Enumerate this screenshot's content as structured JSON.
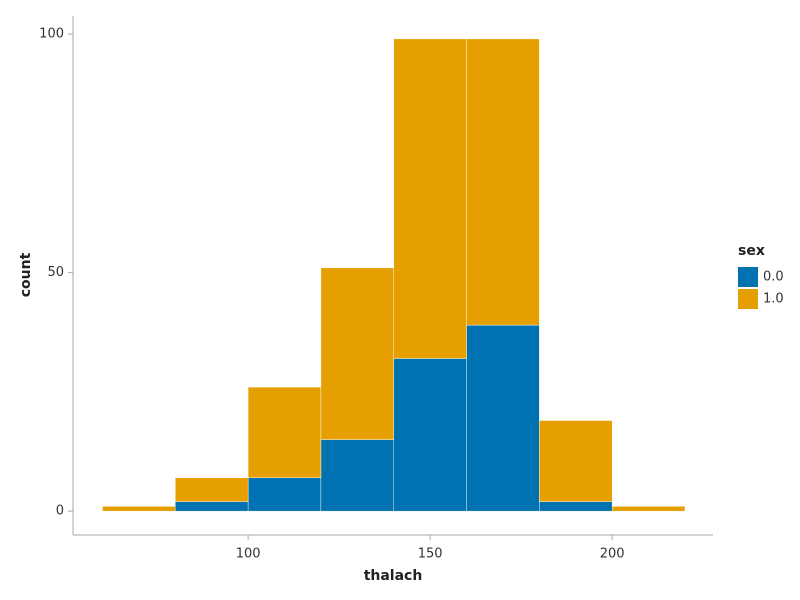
{
  "chart_data": {
    "type": "histogram",
    "stacked": true,
    "x_label": "thalach",
    "y_label": "count",
    "legend_title": "sex",
    "legend_position": "right",
    "bins": [
      60,
      80,
      100,
      120,
      140,
      160,
      180,
      200,
      220
    ],
    "series": [
      {
        "name": "0.0",
        "color": "#0072b2",
        "values": [
          0,
          2,
          7,
          15,
          32,
          39,
          2,
          0
        ]
      },
      {
        "name": "1.0",
        "color": "#e69f00",
        "values": [
          1,
          5,
          19,
          36,
          67,
          60,
          17,
          1
        ]
      }
    ],
    "xlim": [
      51.9,
      227.7
    ],
    "ylim": [
      -5,
      103.8
    ],
    "xticks": [
      100,
      150,
      200
    ],
    "yticks": [
      0,
      50,
      100
    ],
    "grid": false
  }
}
